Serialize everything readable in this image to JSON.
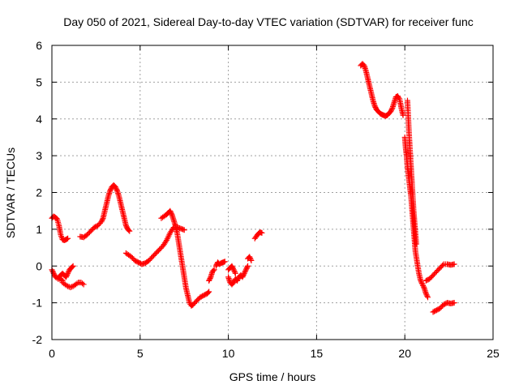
{
  "chart_data": {
    "type": "scatter",
    "title": "Day 050 of 2021, Sidereal Day-to-day VTEC variation (SDTVAR) for receiver func",
    "xlabel": "GPS time / hours",
    "ylabel": "SDTVAR / TECUs",
    "xlim": [
      0,
      25
    ],
    "ylim": [
      -2,
      6
    ],
    "xticks": [
      "0",
      "5",
      "10",
      "15",
      "20",
      "25"
    ],
    "yticks": [
      "-2",
      "-1",
      "0",
      "1",
      "2",
      "3",
      "4",
      "5",
      "6"
    ],
    "grid": true,
    "series": [
      {
        "name": "SDTVAR",
        "color": "#ff0000",
        "marker": "plus",
        "segments": [
          [
            [
              0.0,
              -0.1
            ],
            [
              0.1,
              -0.2
            ],
            [
              0.2,
              -0.3
            ],
            [
              0.35,
              -0.35
            ],
            [
              0.5,
              -0.35
            ],
            [
              0.6,
              -0.4
            ]
          ],
          [
            [
              0.4,
              -0.3
            ],
            [
              0.5,
              -0.25
            ],
            [
              0.6,
              -0.2
            ],
            [
              0.7,
              -0.25
            ],
            [
              0.8,
              -0.3
            ],
            [
              0.9,
              -0.2
            ],
            [
              1.0,
              -0.1
            ],
            [
              1.1,
              -0.05
            ],
            [
              1.2,
              0.0
            ]
          ],
          [
            [
              0.6,
              -0.45
            ],
            [
              0.75,
              -0.5
            ],
            [
              0.9,
              -0.55
            ],
            [
              1.05,
              -0.58
            ],
            [
              1.2,
              -0.55
            ],
            [
              1.35,
              -0.5
            ],
            [
              1.5,
              -0.45
            ],
            [
              1.65,
              -0.45
            ],
            [
              1.8,
              -0.5
            ]
          ],
          [
            [
              0.0,
              1.3
            ],
            [
              0.1,
              1.35
            ],
            [
              0.2,
              1.32
            ],
            [
              0.3,
              1.28
            ],
            [
              0.4,
              1.1
            ],
            [
              0.5,
              0.85
            ],
            [
              0.6,
              0.72
            ],
            [
              0.7,
              0.7
            ],
            [
              0.8,
              0.72
            ],
            [
              0.9,
              0.75
            ]
          ],
          [
            [
              1.6,
              0.8
            ],
            [
              1.8,
              0.78
            ],
            [
              2.0,
              0.85
            ],
            [
              2.2,
              0.95
            ],
            [
              2.4,
              1.05
            ],
            [
              2.6,
              1.1
            ],
            [
              2.8,
              1.2
            ],
            [
              2.9,
              1.3
            ],
            [
              3.0,
              1.5
            ],
            [
              3.1,
              1.7
            ],
            [
              3.2,
              1.9
            ],
            [
              3.3,
              2.05
            ],
            [
              3.4,
              2.15
            ],
            [
              3.5,
              2.2
            ],
            [
              3.6,
              2.15
            ],
            [
              3.7,
              2.05
            ],
            [
              3.8,
              1.9
            ],
            [
              3.9,
              1.7
            ],
            [
              4.0,
              1.5
            ],
            [
              4.1,
              1.3
            ],
            [
              4.2,
              1.1
            ],
            [
              4.3,
              1.0
            ],
            [
              4.4,
              0.95
            ]
          ],
          [
            [
              4.2,
              0.35
            ],
            [
              4.35,
              0.3
            ],
            [
              4.5,
              0.25
            ],
            [
              4.7,
              0.15
            ],
            [
              4.9,
              0.1
            ],
            [
              5.1,
              0.05
            ],
            [
              5.3,
              0.08
            ],
            [
              5.5,
              0.15
            ],
            [
              5.7,
              0.25
            ],
            [
              5.9,
              0.35
            ],
            [
              6.1,
              0.45
            ],
            [
              6.3,
              0.55
            ],
            [
              6.5,
              0.7
            ],
            [
              6.7,
              0.9
            ],
            [
              6.9,
              1.05
            ],
            [
              7.1,
              1.05
            ],
            [
              7.3,
              1.02
            ],
            [
              7.5,
              0.98
            ]
          ],
          [
            [
              6.2,
              1.3
            ],
            [
              6.35,
              1.35
            ],
            [
              6.5,
              1.4
            ],
            [
              6.6,
              1.45
            ],
            [
              6.7,
              1.5
            ],
            [
              6.8,
              1.4
            ],
            [
              6.9,
              1.25
            ],
            [
              7.0,
              1.1
            ],
            [
              7.1,
              0.9
            ],
            [
              7.2,
              0.6
            ],
            [
              7.3,
              0.3
            ],
            [
              7.4,
              0.0
            ],
            [
              7.5,
              -0.3
            ],
            [
              7.6,
              -0.6
            ],
            [
              7.7,
              -0.8
            ],
            [
              7.8,
              -1.0
            ],
            [
              7.9,
              -1.08
            ],
            [
              8.0,
              -1.05
            ],
            [
              8.2,
              -0.95
            ],
            [
              8.4,
              -0.85
            ],
            [
              8.6,
              -0.8
            ],
            [
              8.8,
              -0.75
            ],
            [
              8.9,
              -0.7
            ]
          ],
          [
            [
              8.9,
              -0.4
            ],
            [
              9.0,
              -0.3
            ],
            [
              9.1,
              -0.15
            ],
            [
              9.2,
              -0.1
            ]
          ],
          [
            [
              9.3,
              0.0
            ],
            [
              9.4,
              0.1
            ],
            [
              9.5,
              0.05
            ],
            [
              9.6,
              0.08
            ],
            [
              9.7,
              0.1
            ],
            [
              9.8,
              0.12
            ]
          ],
          [
            [
              10.0,
              -0.3
            ],
            [
              10.1,
              -0.45
            ],
            [
              10.2,
              -0.5
            ],
            [
              10.3,
              -0.45
            ],
            [
              10.4,
              -0.35
            ],
            [
              10.5,
              -0.4
            ],
            [
              10.6,
              -0.3
            ],
            [
              10.7,
              -0.25
            ],
            [
              10.8,
              -0.3
            ],
            [
              10.9,
              -0.2
            ],
            [
              11.0,
              -0.1
            ],
            [
              11.1,
              0.0
            ]
          ],
          [
            [
              10.0,
              -0.1
            ],
            [
              10.1,
              -0.05
            ],
            [
              10.2,
              0.0
            ],
            [
              10.3,
              -0.1
            ],
            [
              10.4,
              -0.2
            ]
          ],
          [
            [
              11.1,
              0.2
            ],
            [
              11.2,
              0.25
            ],
            [
              11.3,
              0.15
            ]
          ],
          [
            [
              11.5,
              0.75
            ],
            [
              11.6,
              0.82
            ],
            [
              11.7,
              0.88
            ],
            [
              11.8,
              0.92
            ],
            [
              11.9,
              0.9
            ]
          ],
          [
            [
              17.5,
              5.45
            ],
            [
              17.6,
              5.5
            ],
            [
              17.7,
              5.45
            ],
            [
              17.8,
              5.3
            ],
            [
              17.9,
              5.1
            ],
            [
              18.0,
              4.9
            ],
            [
              18.1,
              4.7
            ],
            [
              18.2,
              4.5
            ],
            [
              18.3,
              4.35
            ],
            [
              18.4,
              4.25
            ],
            [
              18.5,
              4.2
            ],
            [
              18.6,
              4.15
            ],
            [
              18.7,
              4.12
            ],
            [
              18.8,
              4.1
            ],
            [
              18.9,
              4.08
            ],
            [
              19.0,
              4.1
            ],
            [
              19.1,
              4.15
            ],
            [
              19.2,
              4.2
            ],
            [
              19.3,
              4.3
            ],
            [
              19.4,
              4.45
            ],
            [
              19.5,
              4.6
            ],
            [
              19.6,
              4.62
            ],
            [
              19.7,
              4.55
            ],
            [
              19.8,
              4.3
            ],
            [
              19.9,
              4.1
            ]
          ],
          [
            [
              20.0,
              3.5
            ],
            [
              20.05,
              3.2
            ],
            [
              20.1,
              3.0
            ],
            [
              20.15,
              2.7
            ],
            [
              20.2,
              2.5
            ],
            [
              20.25,
              2.3
            ],
            [
              20.3,
              2.1
            ],
            [
              20.35,
              1.9
            ],
            [
              20.4,
              1.6
            ],
            [
              20.45,
              1.3
            ],
            [
              20.5,
              1.0
            ],
            [
              20.55,
              0.7
            ],
            [
              20.6,
              0.4
            ],
            [
              20.7,
              0.1
            ],
            [
              20.8,
              -0.2
            ],
            [
              20.9,
              -0.4
            ],
            [
              21.0,
              -0.5
            ],
            [
              21.1,
              -0.6
            ],
            [
              21.2,
              -0.75
            ],
            [
              21.3,
              -0.85
            ]
          ],
          [
            [
              20.15,
              4.5
            ],
            [
              20.2,
              4.0
            ],
            [
              20.25,
              3.5
            ],
            [
              20.3,
              3.1
            ],
            [
              20.35,
              2.7
            ],
            [
              20.4,
              2.3
            ],
            [
              20.45,
              1.9
            ],
            [
              20.5,
              1.5
            ],
            [
              20.55,
              1.2
            ],
            [
              20.6,
              0.9
            ],
            [
              20.65,
              0.6
            ]
          ],
          [
            [
              21.2,
              -0.4
            ],
            [
              21.4,
              -0.35
            ],
            [
              21.6,
              -0.25
            ],
            [
              21.8,
              -0.15
            ],
            [
              22.0,
              -0.05
            ],
            [
              22.2,
              0.05
            ],
            [
              22.4,
              0.05
            ],
            [
              22.6,
              0.03
            ],
            [
              22.8,
              0.05
            ]
          ],
          [
            [
              21.6,
              -1.25
            ],
            [
              21.8,
              -1.2
            ],
            [
              22.0,
              -1.15
            ],
            [
              22.2,
              -1.05
            ],
            [
              22.4,
              -1.0
            ],
            [
              22.6,
              -1.02
            ],
            [
              22.8,
              -1.0
            ]
          ]
        ]
      }
    ]
  }
}
